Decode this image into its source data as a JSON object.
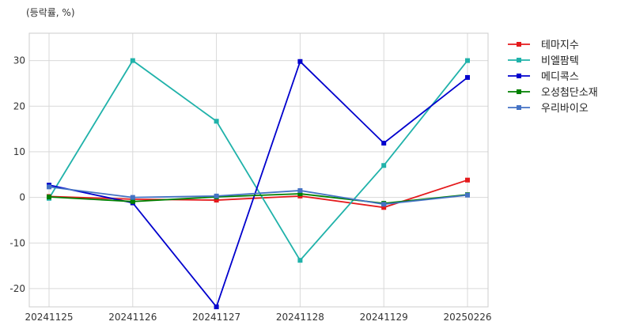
{
  "chart_data": {
    "type": "line",
    "unit_label": "(등락률, %)",
    "categories": [
      "20241125",
      "20241126",
      "20241127",
      "20241128",
      "20241129",
      "20250226"
    ],
    "ylim": [
      -24,
      36
    ],
    "yticks": [
      -20,
      -10,
      0,
      10,
      20,
      30
    ],
    "grid": true,
    "legend_position": "top-right-outside",
    "series": [
      {
        "name": "테마지수",
        "color": "#e41a1c",
        "values": [
          0.2,
          -0.4,
          -0.6,
          0.3,
          -2.2,
          3.8
        ]
      },
      {
        "name": "비엘팜텍",
        "color": "#20b2aa",
        "values": [
          -0.2,
          30.0,
          16.7,
          -13.8,
          7.0,
          30.0
        ]
      },
      {
        "name": "메디콕스",
        "color": "#0000cd",
        "values": [
          2.7,
          -1.2,
          -24.0,
          29.8,
          11.9,
          26.3
        ]
      },
      {
        "name": "오성첨단소재",
        "color": "#008000",
        "values": [
          0.1,
          -0.9,
          0.1,
          0.8,
          -1.3,
          0.6
        ]
      },
      {
        "name": "우리바이오",
        "color": "#4472c4",
        "values": [
          2.3,
          0.0,
          0.3,
          1.5,
          -1.5,
          0.5
        ]
      }
    ]
  }
}
